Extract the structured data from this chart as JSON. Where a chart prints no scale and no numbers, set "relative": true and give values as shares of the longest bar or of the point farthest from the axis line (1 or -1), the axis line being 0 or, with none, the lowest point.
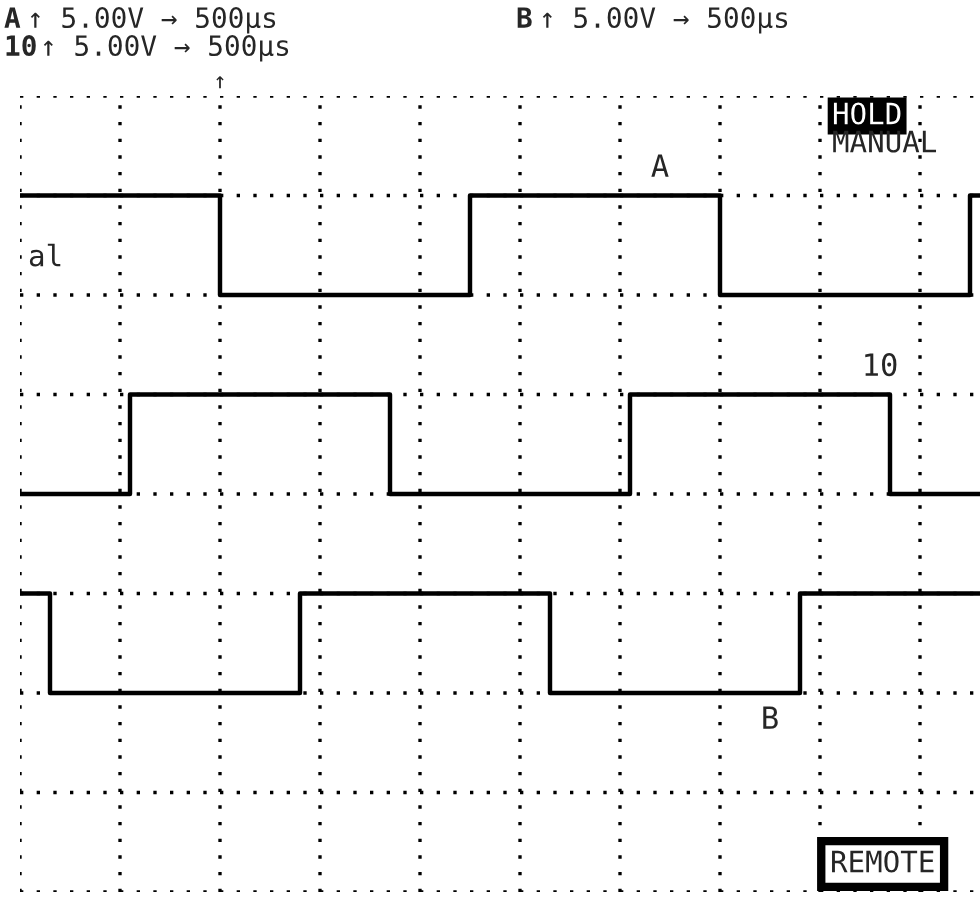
{
  "chart_data": {
    "type": "step",
    "relative": true,
    "grid": true,
    "legend": false,
    "marker": "none",
    "line_style": "solid",
    "categories": [
      null,
      null,
      null,
      null,
      null,
      null,
      null,
      null,
      null,
      null,
      null,
      null,
      null,
      null,
      null,
      null,
      null,
      null,
      null,
      null,
      null,
      null,
      null,
      null,
      null,
      null,
      null,
      null,
      null,
      null,
      null,
      null,
      null,
      null,
      null,
      null,
      null,
      null,
      null,
      null,
      null,
      null,
      null,
      null,
      null,
      null,
      null,
      null,
      null,
      null,
      null,
      null,
      null,
      null,
      null,
      null,
      null,
      null,
      null,
      null,
      null,
      null,
      null,
      null,
      null,
      null,
      null,
      null,
      null,
      null,
      null,
      null,
      null,
      null,
      null,
      null,
      null,
      null,
      null,
      null,
      null,
      null,
      null,
      null,
      null,
      null,
      null,
      null,
      null,
      null,
      null,
      null,
      null,
      null,
      null,
      null,
      null
    ],
    "series": [
      {
        "name": "A",
        "color": "#000000",
        "values": [
          1,
          1,
          1,
          1,
          1,
          1,
          1,
          1,
          1,
          1,
          1,
          1,
          1,
          1,
          1,
          1,
          1,
          1,
          1,
          1,
          0.8,
          0.8,
          0.8,
          0.8,
          0.8,
          0.8,
          0.8,
          0.8,
          0.8,
          0.8,
          0.8,
          0.8,
          0.8,
          0.8,
          0.8,
          0.8,
          0.8,
          0.8,
          0.8,
          0.8,
          0.8,
          0.8,
          0.8,
          0.8,
          0.8,
          1,
          1,
          1,
          1,
          1,
          1,
          1,
          1,
          1,
          1,
          1,
          1,
          1,
          1,
          1,
          1,
          1,
          1,
          1,
          1,
          1,
          1,
          1,
          1,
          1,
          0.8,
          0.8,
          0.8,
          0.8,
          0.8,
          0.8,
          0.8,
          0.8,
          0.8,
          0.8,
          0.8,
          0.8,
          0.8,
          0.8,
          0.8,
          0.8,
          0.8,
          0.8,
          0.8,
          0.8,
          0.8,
          0.8,
          0.8,
          0.8,
          0.8,
          1,
          1
        ]
      },
      {
        "name": "10",
        "color": "#000000",
        "values": [
          0.4,
          0.4,
          0.4,
          0.4,
          0.4,
          0.4,
          0.4,
          0.4,
          0.4,
          0.4,
          0.4,
          0.6,
          0.6,
          0.6,
          0.6,
          0.6,
          0.6,
          0.6,
          0.6,
          0.6,
          0.6,
          0.6,
          0.6,
          0.6,
          0.6,
          0.6,
          0.6,
          0.6,
          0.6,
          0.6,
          0.6,
          0.6,
          0.6,
          0.6,
          0.6,
          0.6,
          0.6,
          0.4,
          0.4,
          0.4,
          0.4,
          0.4,
          0.4,
          0.4,
          0.4,
          0.4,
          0.4,
          0.4,
          0.4,
          0.4,
          0.4,
          0.4,
          0.4,
          0.4,
          0.4,
          0.4,
          0.4,
          0.4,
          0.4,
          0.4,
          0.4,
          0.6,
          0.6,
          0.6,
          0.6,
          0.6,
          0.6,
          0.6,
          0.6,
          0.6,
          0.6,
          0.6,
          0.6,
          0.6,
          0.6,
          0.6,
          0.6,
          0.6,
          0.6,
          0.6,
          0.6,
          0.6,
          0.6,
          0.6,
          0.6,
          0.6,
          0.6,
          0.4,
          0.4,
          0.4,
          0.4,
          0.4,
          0.4,
          0.4,
          0.4,
          0.4,
          0.4
        ]
      },
      {
        "name": "B",
        "color": "#000000",
        "values": [
          0.2,
          0.2,
          0.2,
          0,
          0,
          0,
          0,
          0,
          0,
          0,
          0,
          0,
          0,
          0,
          0,
          0,
          0,
          0,
          0,
          0,
          0,
          0,
          0,
          0,
          0,
          0,
          0,
          0,
          0.2,
          0.2,
          0.2,
          0.2,
          0.2,
          0.2,
          0.2,
          0.2,
          0.2,
          0.2,
          0.2,
          0.2,
          0.2,
          0.2,
          0.2,
          0.2,
          0.2,
          0.2,
          0.2,
          0.2,
          0.2,
          0.2,
          0.2,
          0.2,
          0.2,
          0,
          0,
          0,
          0,
          0,
          0,
          0,
          0,
          0,
          0,
          0,
          0,
          0,
          0,
          0,
          0,
          0,
          0,
          0,
          0,
          0,
          0,
          0,
          0,
          0,
          0.2,
          0.2,
          0.2,
          0.2,
          0.2,
          0.2,
          0.2,
          0.2,
          0.2,
          0.2,
          0.2,
          0.2,
          0.2,
          0.2,
          0.2,
          0.2,
          0.2,
          0.2,
          0.2
        ]
      }
    ],
    "annotations": [
      "A ↑ 5.00V → 500µs",
      "B ↑ 5.00V → 500µs",
      "10 ↑ 5.00V → 500µs",
      "↑",
      "HOLD",
      "MANUAL",
      "al",
      "REMOTE"
    ]
  }
}
